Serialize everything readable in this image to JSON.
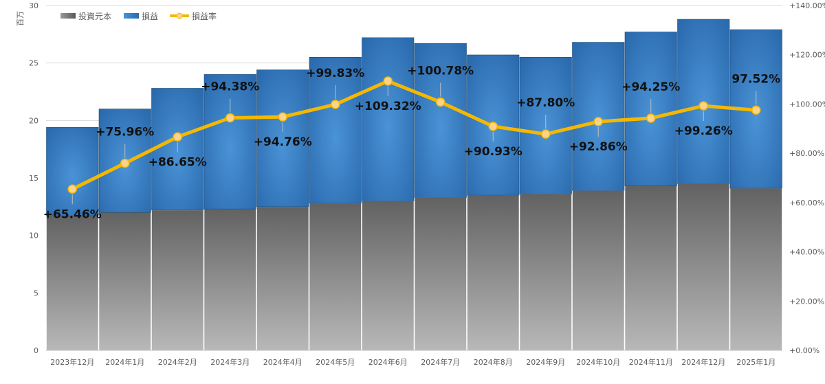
{
  "chart_data": {
    "type": "bar",
    "stacked": true,
    "title": "",
    "y_unit_label": "百万",
    "categories": [
      "2023年12月",
      "2024年1月",
      "2024年2月",
      "2024年3月",
      "2024年4月",
      "2024年5月",
      "2024年6月",
      "2024年7月",
      "2024年8月",
      "2024年9月",
      "2024年10月",
      "2024年11月",
      "2024年12月",
      "2025年1月"
    ],
    "series": [
      {
        "name": "投資元本",
        "type": "bar",
        "axis": "left",
        "color": "#7f7f7f",
        "values": [
          11.7,
          12.0,
          12.2,
          12.3,
          12.5,
          12.8,
          13.0,
          13.3,
          13.5,
          13.6,
          13.9,
          14.3,
          14.5,
          14.1
        ]
      },
      {
        "name": "損益",
        "type": "bar",
        "axis": "left",
        "color": "#3a82c8",
        "values": [
          7.7,
          9.0,
          10.6,
          11.7,
          11.9,
          12.7,
          14.2,
          13.4,
          12.2,
          11.9,
          12.9,
          13.4,
          14.3,
          13.8
        ]
      },
      {
        "name": "損益率",
        "type": "line",
        "axis": "right",
        "color": "#f5b800",
        "values": [
          65.46,
          75.96,
          86.65,
          94.38,
          94.76,
          99.83,
          109.32,
          100.78,
          90.93,
          87.8,
          92.86,
          94.25,
          99.26,
          97.52
        ],
        "labels": [
          "+65.46%",
          "+75.96%",
          "+86.65%",
          "+94.38%",
          "+94.76%",
          "+99.83%",
          "+109.32%",
          "+100.78%",
          "+90.93%",
          "+87.80%",
          "+92.86%",
          "+94.25%",
          "+99.26%",
          "97.52%"
        ]
      }
    ],
    "y_left": {
      "min": 0,
      "max": 30,
      "ticks": [
        "0",
        "5",
        "10",
        "15",
        "20",
        "25",
        "30"
      ]
    },
    "y_right": {
      "min": 0,
      "max": 140,
      "ticks": [
        "+0.00%",
        "+20.00%",
        "+40.00%",
        "+60.00%",
        "+80.00%",
        "+100.00%",
        "+120.00%",
        "+140.00%"
      ]
    },
    "legend_position": "top-left",
    "grid": true
  }
}
